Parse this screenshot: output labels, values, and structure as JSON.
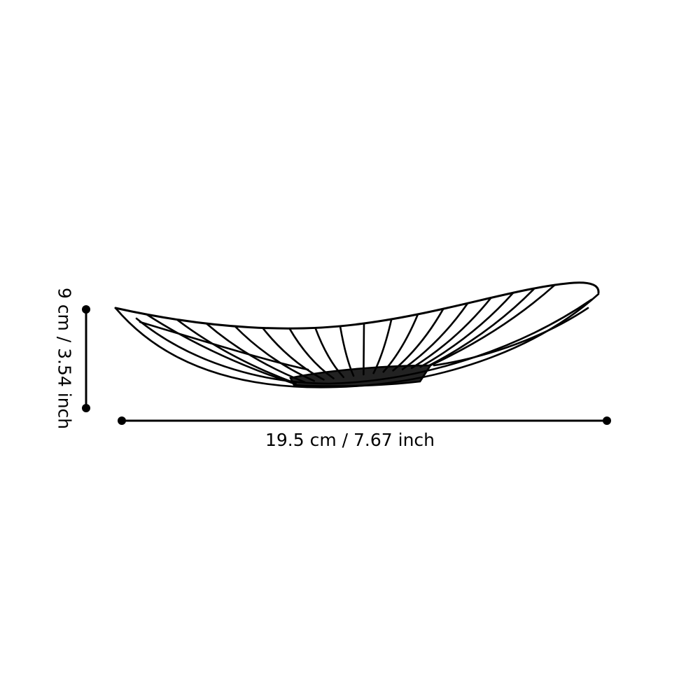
{
  "dimensions": {
    "width_label": "19.5 cm / 7.67 inch",
    "height_label": "9 cm / 3.54 inch"
  },
  "colors": {
    "line": "#000000",
    "background": "#ffffff"
  }
}
